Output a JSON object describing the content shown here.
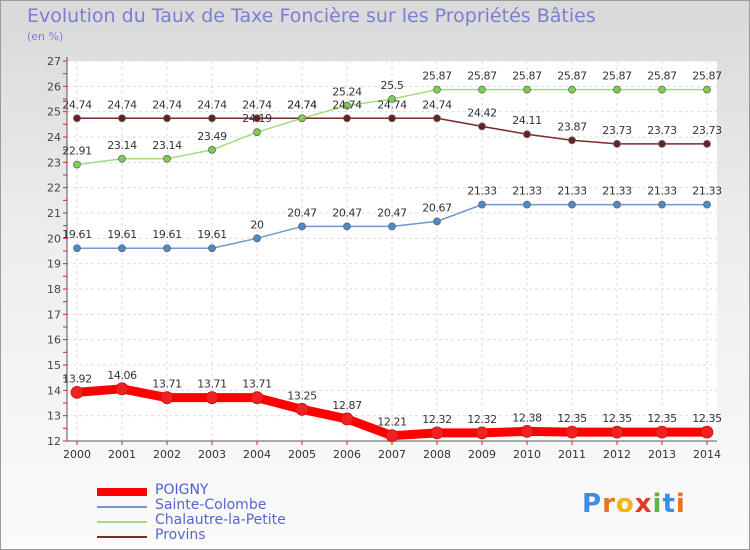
{
  "title": "Evolution du Taux de Taxe Foncière sur les Propriétés Bâties",
  "unit_label": "(en %)",
  "logo": {
    "letters": [
      "P",
      "r",
      "o",
      "x",
      "i",
      "t",
      "i"
    ],
    "colors": [
      "#3a8ee6",
      "#e8731f",
      "#f2b417",
      "#e23a2d",
      "#5fb63c",
      "#3a8ee6",
      "#e8731f"
    ]
  },
  "chart_data": {
    "type": "line",
    "title": "Evolution du Taux de Taxe Foncière sur les Propriétés Bâties",
    "ylabel": "(en %)",
    "ylim": [
      12,
      27
    ],
    "yticks": [
      12,
      13,
      14,
      15,
      16,
      17,
      18,
      19,
      20,
      21,
      22,
      23,
      24,
      25,
      26,
      27
    ],
    "grid": true,
    "legend_position": "bottom-left",
    "x": [
      "2000",
      "2001",
      "2002",
      "2003",
      "2004",
      "2005",
      "2006",
      "2007",
      "2008",
      "2009",
      "2010",
      "2011",
      "2012",
      "2013",
      "2014"
    ],
    "series": [
      {
        "name": "POIGNY",
        "color": "#ff0000",
        "marker": "#ee2222",
        "width": 9,
        "legend_width": 7,
        "values": [
          13.92,
          14.06,
          13.71,
          13.71,
          13.71,
          13.25,
          12.87,
          12.21,
          12.32,
          12.32,
          12.38,
          12.35,
          12.35,
          12.35,
          12.35
        ],
        "labels": [
          "13.92",
          "14.06",
          "13.71",
          "13.71",
          "13.71",
          "13.25",
          "12.87",
          "12.21",
          "12.32",
          "12.32",
          "12.38",
          "12.35",
          "12.35",
          "12.35",
          "12.35"
        ]
      },
      {
        "name": "Sainte-Colombe",
        "color": "#6b9bd0",
        "marker": "#4a8bd0",
        "width": 1.5,
        "legend_width": 1.5,
        "values": [
          19.61,
          19.61,
          19.61,
          19.61,
          20,
          20.47,
          20.47,
          20.47,
          20.67,
          21.33,
          21.33,
          21.33,
          21.33,
          21.33,
          21.33
        ],
        "labels": [
          "19.61",
          "19.61",
          "19.61",
          "19.61",
          "20",
          "20.47",
          "20.47",
          "20.47",
          "20.67",
          "21.33",
          "21.33",
          "21.33",
          "21.33",
          "21.33",
          "21.33"
        ]
      },
      {
        "name": "Chalautre-la-Petite",
        "color": "#a3dc7e",
        "marker": "#7fcf4e",
        "width": 1.5,
        "legend_width": 1.5,
        "values": [
          22.91,
          23.14,
          23.14,
          23.49,
          24.19,
          24.74,
          25.24,
          25.5,
          25.87,
          25.87,
          25.87,
          25.87,
          25.87,
          25.87,
          25.87
        ],
        "labels": [
          "22.91",
          "23.14",
          "23.14",
          "23.49",
          "24.19",
          "24.74",
          "25.24",
          "25.5",
          "25.87",
          "25.87",
          "25.87",
          "25.87",
          "25.87",
          "25.87",
          "25.87"
        ]
      },
      {
        "name": "Provins",
        "color": "#7a2a2a",
        "marker": "#6a2020",
        "width": 1.5,
        "legend_width": 1.5,
        "values": [
          24.74,
          24.74,
          24.74,
          24.74,
          24.74,
          24.74,
          24.74,
          24.74,
          24.74,
          24.42,
          24.11,
          23.87,
          23.73,
          23.73,
          23.73
        ],
        "labels": [
          "24.74",
          "24.74",
          "24.74",
          "24.74",
          "24.74",
          "24.74",
          "24.74",
          "24.74",
          "24.74",
          "24.42",
          "24.11",
          "23.87",
          "23.73",
          "23.73",
          "23.73"
        ]
      }
    ]
  }
}
